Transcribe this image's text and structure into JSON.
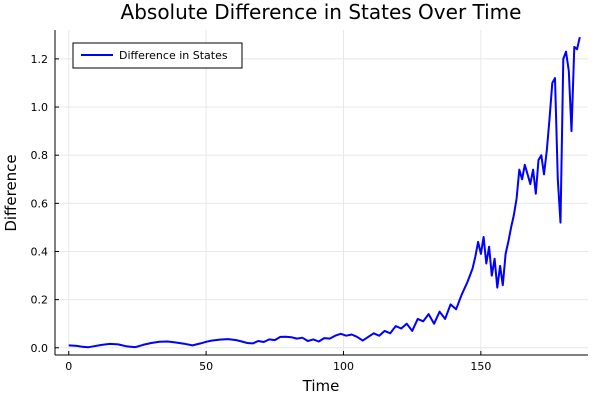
{
  "chart_data": {
    "type": "line",
    "title": "Absolute Difference in States Over Time",
    "xlabel": "Time",
    "ylabel": "Difference",
    "xlim": [
      -5,
      189
    ],
    "ylim": [
      -0.03,
      1.32
    ],
    "xticks": [
      0,
      50,
      100,
      150
    ],
    "xtick_labels": [
      "0",
      "50",
      "100",
      "150"
    ],
    "yticks": [
      0.0,
      0.2,
      0.4,
      0.6,
      0.8,
      1.0,
      1.2
    ],
    "ytick_labels": [
      "0.0",
      "0.2",
      "0.4",
      "0.6",
      "0.8",
      "1.0",
      "1.2"
    ],
    "grid": true,
    "legend_position": "top-left",
    "series": [
      {
        "name": "Difference in States",
        "color": "#0000ff",
        "x": [
          0,
          3,
          5,
          7,
          9,
          12,
          15,
          18,
          21,
          24,
          25,
          27,
          30,
          33,
          36,
          39,
          42,
          45,
          48,
          50,
          52,
          55,
          58,
          61,
          63,
          65,
          67,
          69,
          71,
          73,
          75,
          77,
          79,
          81,
          83,
          85,
          87,
          89,
          91,
          93,
          95,
          97,
          99,
          101,
          103,
          105,
          107,
          109,
          111,
          113,
          115,
          117,
          119,
          121,
          123,
          125,
          127,
          129,
          131,
          133,
          135,
          137,
          139,
          141,
          143,
          145,
          146,
          147,
          148,
          149,
          150,
          151,
          152,
          153,
          154,
          155,
          156,
          157,
          158,
          159,
          160,
          161,
          162,
          163,
          164,
          165,
          166,
          167,
          168,
          169,
          170,
          171,
          172,
          173,
          174,
          175,
          176,
          177,
          178,
          179,
          180,
          181,
          182,
          183,
          184,
          185,
          186
        ],
        "values": [
          0.01,
          0.008,
          0.004,
          0.002,
          0.006,
          0.012,
          0.016,
          0.014,
          0.006,
          0.003,
          0.005,
          0.012,
          0.02,
          0.025,
          0.026,
          0.022,
          0.017,
          0.01,
          0.018,
          0.025,
          0.03,
          0.034,
          0.036,
          0.032,
          0.026,
          0.02,
          0.018,
          0.028,
          0.024,
          0.035,
          0.032,
          0.045,
          0.046,
          0.044,
          0.038,
          0.042,
          0.028,
          0.035,
          0.026,
          0.04,
          0.038,
          0.05,
          0.058,
          0.05,
          0.055,
          0.045,
          0.03,
          0.045,
          0.06,
          0.05,
          0.07,
          0.06,
          0.09,
          0.08,
          0.1,
          0.07,
          0.12,
          0.11,
          0.14,
          0.1,
          0.15,
          0.12,
          0.18,
          0.16,
          0.22,
          0.27,
          0.3,
          0.33,
          0.38,
          0.44,
          0.39,
          0.46,
          0.35,
          0.42,
          0.3,
          0.37,
          0.25,
          0.34,
          0.26,
          0.39,
          0.44,
          0.5,
          0.55,
          0.62,
          0.74,
          0.7,
          0.76,
          0.72,
          0.68,
          0.74,
          0.64,
          0.78,
          0.8,
          0.72,
          0.82,
          0.95,
          1.1,
          1.12,
          0.7,
          0.52,
          1.2,
          1.23,
          1.15,
          0.9,
          1.25,
          1.24,
          1.29
        ]
      }
    ]
  }
}
